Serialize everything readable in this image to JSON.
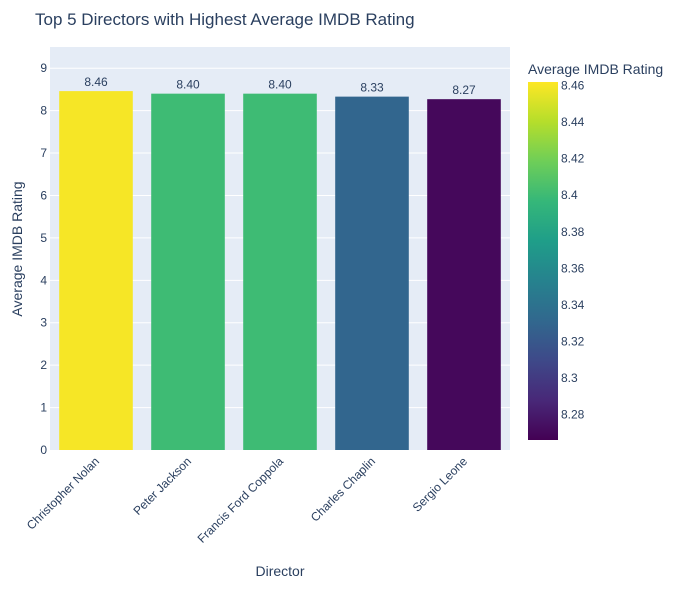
{
  "chart_data": {
    "type": "bar",
    "title": "Top 5 Directors with Highest Average IMDB Rating",
    "xlabel": "Director",
    "ylabel": "Average IMDB Rating",
    "categories": [
      "Christopher Nolan",
      "Peter Jackson",
      "Francis Ford Coppola",
      "Charles Chaplin",
      "Sergio Leone"
    ],
    "values": [
      8.46,
      8.4,
      8.4,
      8.33,
      8.27
    ],
    "data_labels": [
      "8.46",
      "8.40",
      "8.40",
      "8.33",
      "8.27"
    ],
    "ylim": [
      0,
      9.5
    ],
    "yticks": [
      0,
      1,
      2,
      3,
      4,
      5,
      6,
      7,
      8,
      9
    ],
    "grid": true,
    "colorbar": {
      "title": "Average IMDB Rating",
      "range": [
        8.266,
        8.462
      ],
      "ticks": [
        8.28,
        8.3,
        8.32,
        8.34,
        8.36,
        8.38,
        8.4,
        8.42,
        8.44,
        8.46
      ],
      "tick_labels": [
        "8.28",
        "8.3",
        "8.32",
        "8.34",
        "8.36",
        "8.38",
        "8.4",
        "8.42",
        "8.44",
        "8.46"
      ],
      "colorscale": "viridis",
      "placement": "right"
    },
    "colors": {
      "plot_bg": "#e5ecf6",
      "grid": "#ffffff",
      "text": "#2a3f5f",
      "viridis": [
        "#440154",
        "#482878",
        "#3e4989",
        "#31688e",
        "#26828e",
        "#1f9e89",
        "#35b779",
        "#6ece58",
        "#b5de2b",
        "#fde725"
      ]
    }
  }
}
